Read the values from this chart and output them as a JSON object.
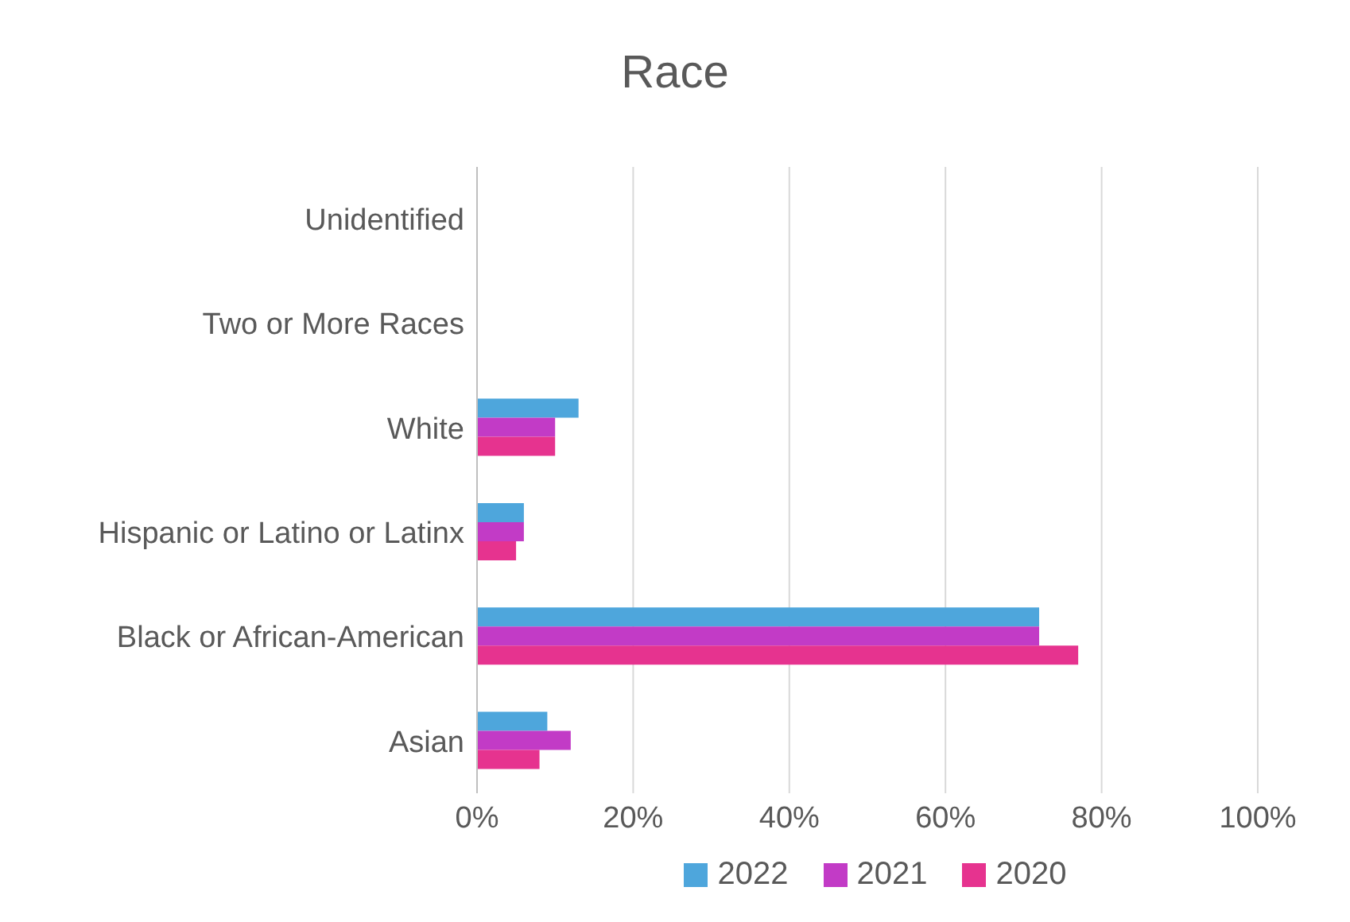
{
  "chart_data": {
    "type": "bar",
    "orientation": "horizontal",
    "title": "Race",
    "categories": [
      "Unidentified",
      "Two or More Races",
      "White",
      "Hispanic or Latino or Latinx",
      "Black or African-American",
      "Asian"
    ],
    "series": [
      {
        "name": "2022",
        "color": "#4ea6dc",
        "values": [
          0,
          0,
          13,
          6,
          72,
          9
        ]
      },
      {
        "name": "2021",
        "color": "#c23bc6",
        "values": [
          0,
          0,
          10,
          6,
          72,
          12
        ]
      },
      {
        "name": "2020",
        "color": "#e6338f",
        "values": [
          0,
          0,
          10,
          5,
          77,
          8
        ]
      }
    ],
    "xlim": [
      0,
      100
    ],
    "xticks": [
      {
        "value": 0,
        "label": "0%"
      },
      {
        "value": 20,
        "label": "20%"
      },
      {
        "value": 40,
        "label": "40%"
      },
      {
        "value": 60,
        "label": "60%"
      },
      {
        "value": 80,
        "label": "80%"
      },
      {
        "value": 100,
        "label": "100%"
      }
    ],
    "grid": "x",
    "legend": "bottom"
  }
}
